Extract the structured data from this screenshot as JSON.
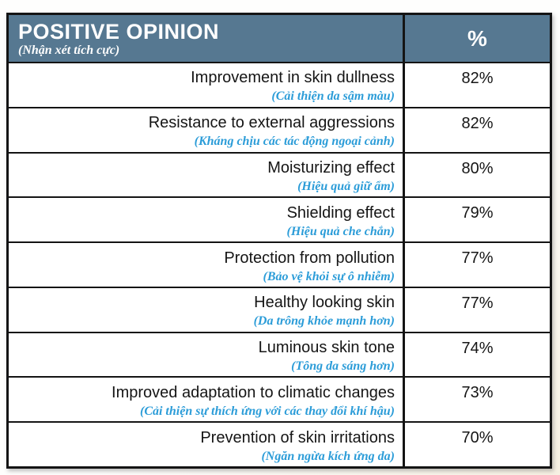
{
  "table": {
    "header": {
      "title": "POSITIVE OPINION",
      "subtitle": "(Nhận xét tích cực)",
      "value_label": "%"
    },
    "rows": [
      {
        "label": "Improvement in skin dullness",
        "sub": "(Cải thiện da sậm màu)",
        "value": "82%"
      },
      {
        "label": "Resistance to external aggressions",
        "sub": "(Kháng chịu các tác động ngoại cảnh)",
        "value": "82%"
      },
      {
        "label": "Moisturizing effect",
        "sub": "(Hiệu quả giữ ẩm)",
        "value": "80%"
      },
      {
        "label": "Shielding effect",
        "sub": "(Hiệu quả che chắn)",
        "value": "79%"
      },
      {
        "label": "Protection from pollution",
        "sub": "(Bảo vệ khỏi sự ô nhiễm)",
        "value": "77%"
      },
      {
        "label": "Healthy looking skin",
        "sub": "(Da trông khỏe mạnh hơn)",
        "value": "77%"
      },
      {
        "label": "Luminous skin tone",
        "sub": "(Tông da sáng hơn)",
        "value": "74%"
      },
      {
        "label": "Improved adaptation to climatic changes",
        "sub": "(Cải thiện sự thích ứng với các thay đổi khí hậu)",
        "value": "73%"
      },
      {
        "label": "Prevention of skin irritations",
        "sub": "(Ngăn ngừa kích ứng da)",
        "value": "70%"
      }
    ]
  },
  "colors": {
    "header_bg": "#567891",
    "border": "#141414",
    "translation_blue": "#2b9cd8",
    "text": "#151515",
    "page_bg": "#f7f1e3"
  },
  "chart_data": {
    "type": "table",
    "title": "POSITIVE OPINION",
    "title_translation": "(Nhận xét tích cực)",
    "columns": [
      "POSITIVE OPINION",
      "%"
    ],
    "categories": [
      "Improvement in skin dullness",
      "Resistance to external aggressions",
      "Moisturizing effect",
      "Shielding effect",
      "Protection from pollution",
      "Healthy looking skin",
      "Luminous skin tone",
      "Improved adaptation to climatic changes",
      "Prevention of skin irritations"
    ],
    "categories_translations": [
      "(Cải thiện da sậm màu)",
      "(Kháng chịu các tác động ngoại cảnh)",
      "(Hiệu quả giữ ẩm)",
      "(Hiệu quả che chắn)",
      "(Bảo vệ khỏi sự ô nhiễm)",
      "(Da trông khỏe mạnh hơn)",
      "(Tông da sáng hơn)",
      "(Cải thiện sự thích ứng với các thay đổi khí hậu)",
      "(Ngăn ngừa kích ứng da)"
    ],
    "values": [
      82,
      82,
      80,
      79,
      77,
      77,
      74,
      73,
      70
    ],
    "value_unit": "%"
  }
}
